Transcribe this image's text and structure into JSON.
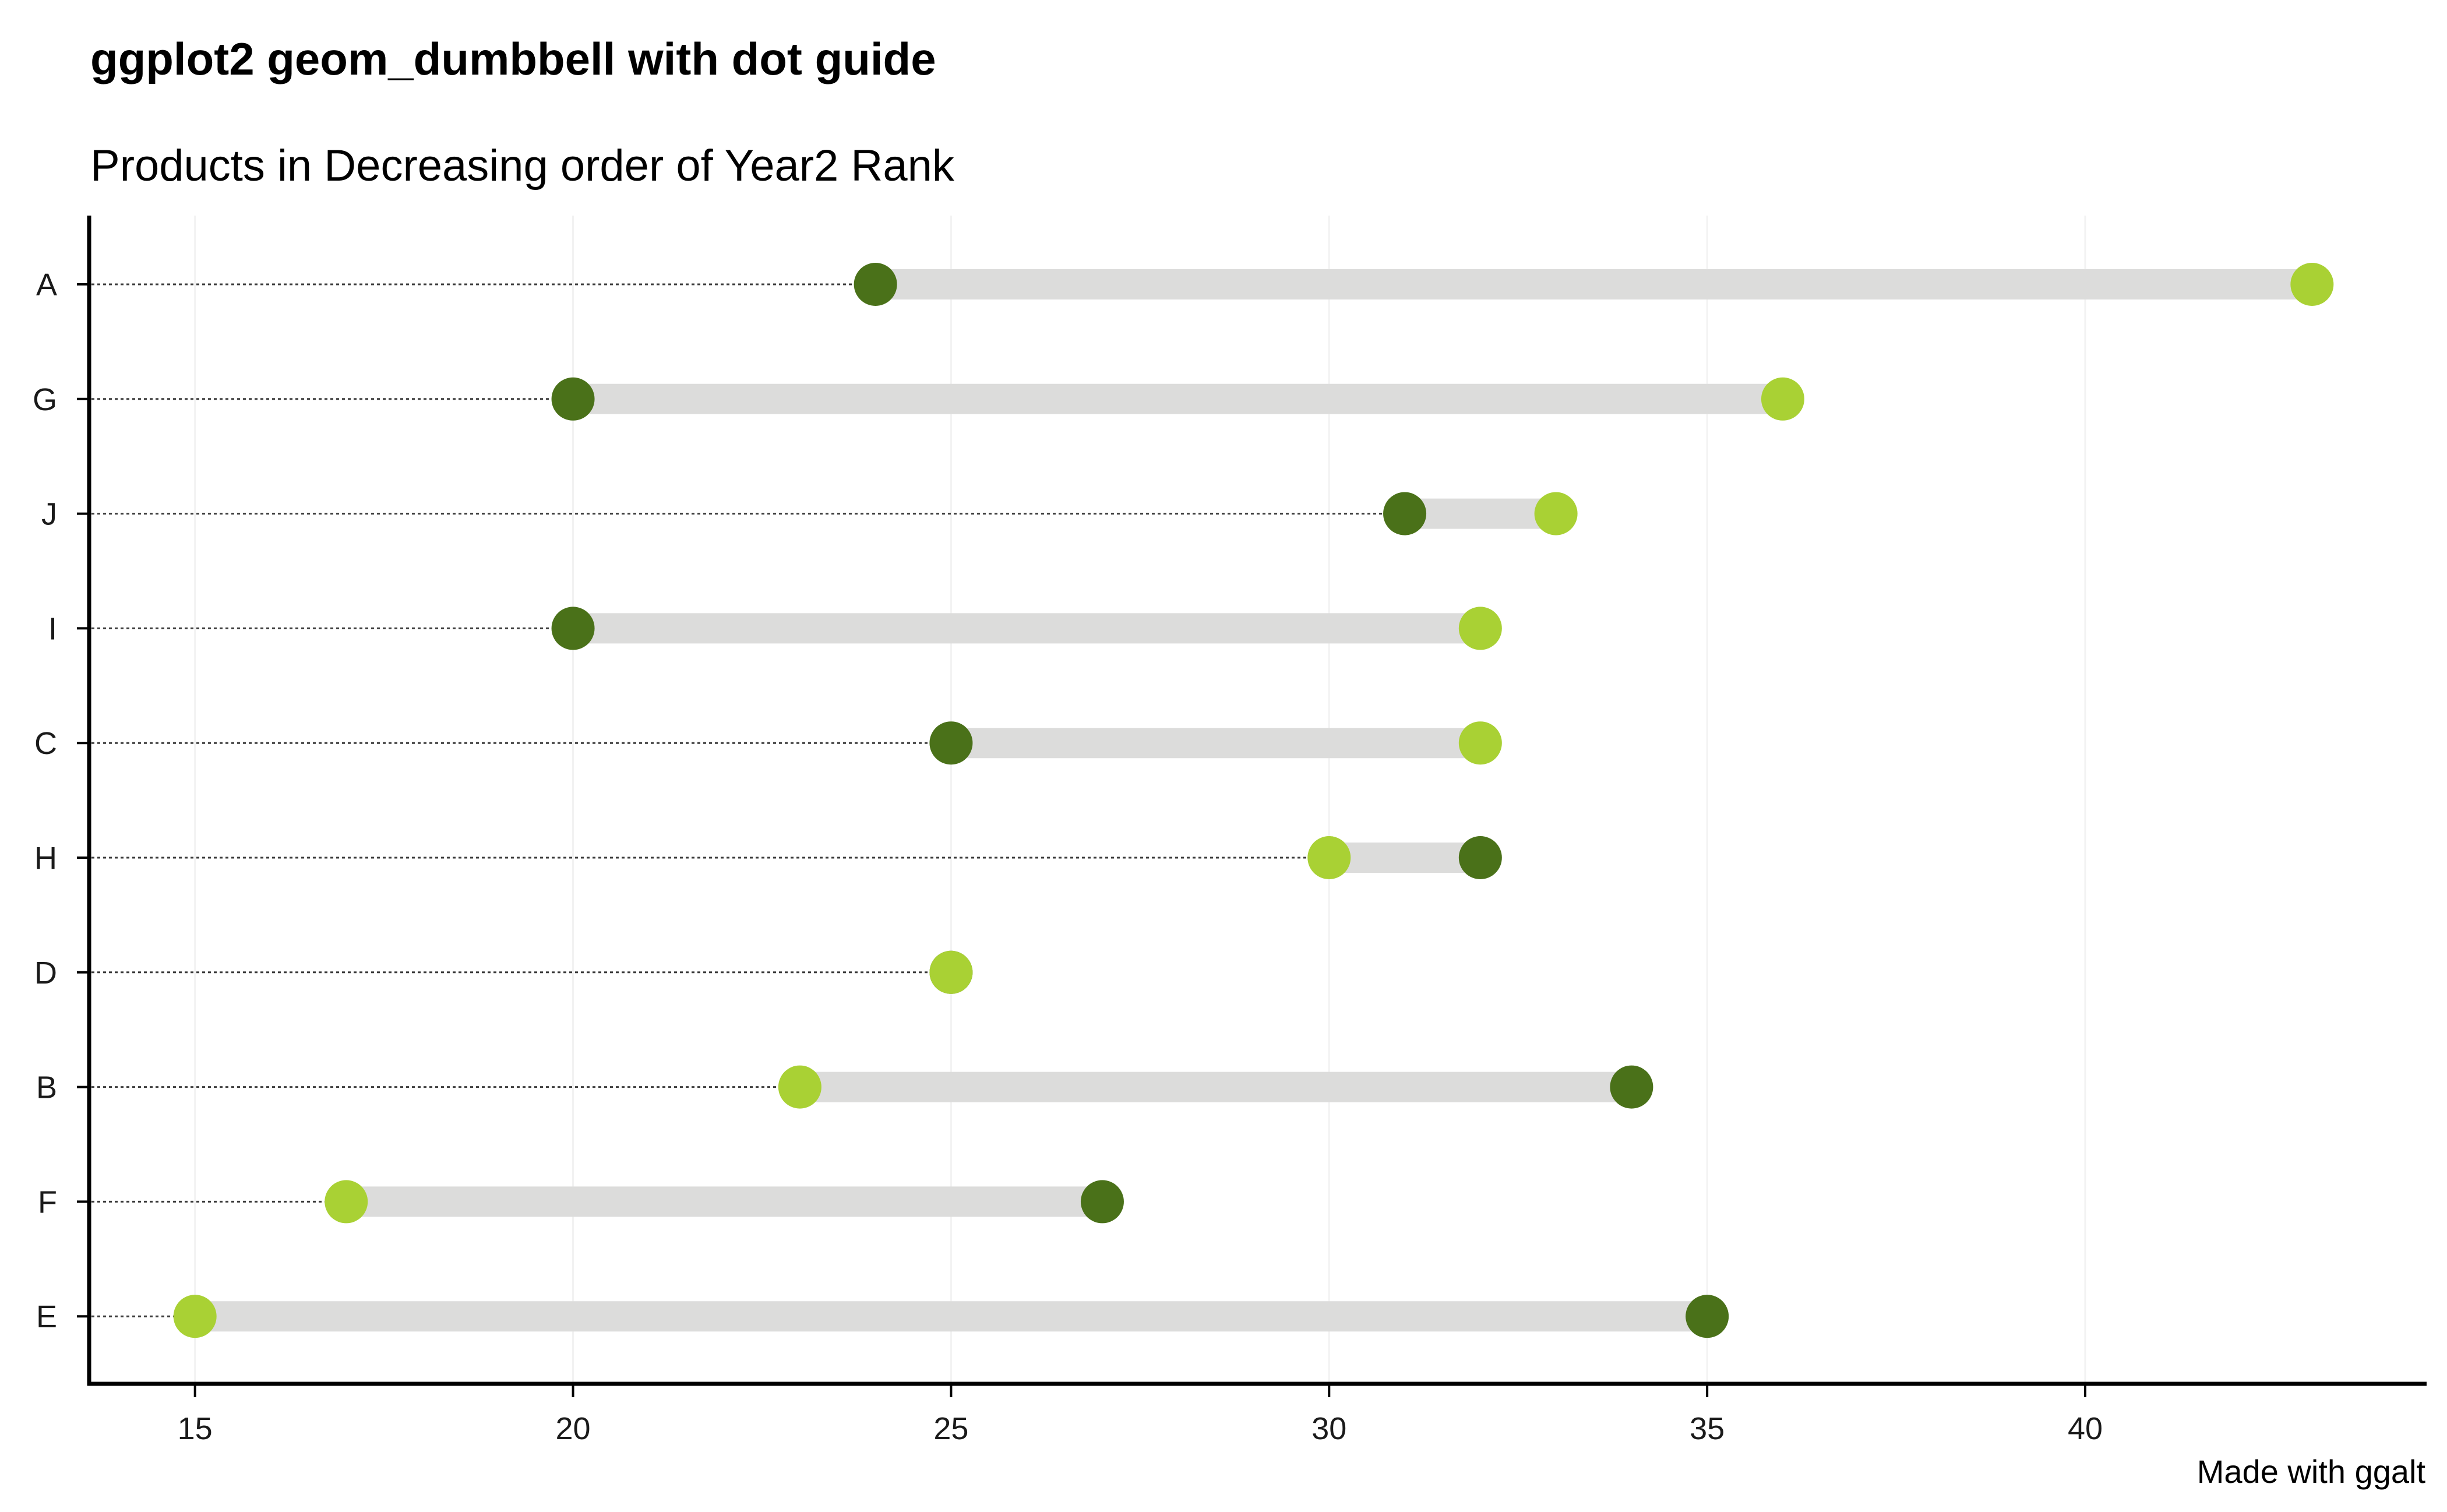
{
  "chart_data": {
    "type": "dumbbell",
    "title": "ggplot2 geom_dumbbell with dot guide",
    "subtitle": "Products in Decreasing order of Year2 Rank",
    "caption": "Made with ggalt",
    "xlabel": "",
    "ylabel": "",
    "xlim": [
      13.6,
      44.5
    ],
    "x_ticks": [
      15,
      20,
      25,
      30,
      35,
      40
    ],
    "grid": "vertical major lines only, very faint",
    "legend": "none",
    "colors": {
      "year1_point": "#a9d134",
      "year2_point": "#4a7119",
      "segment": "#dcdcdb",
      "dot_guide": "#3c3c3c",
      "axis": "#000000",
      "grid": "#f2f2f2"
    },
    "rows": [
      {
        "product": "A",
        "year1": 43,
        "year2": 24
      },
      {
        "product": "G",
        "year1": 36,
        "year2": 20
      },
      {
        "product": "J",
        "year1": 33,
        "year2": 31
      },
      {
        "product": "I",
        "year1": 32,
        "year2": 20
      },
      {
        "product": "C",
        "year1": 32,
        "year2": 25
      },
      {
        "product": "H",
        "year1": 30,
        "year2": 32
      },
      {
        "product": "D",
        "year1": 25,
        "year2": 25
      },
      {
        "product": "B",
        "year1": 23,
        "year2": 34
      },
      {
        "product": "F",
        "year1": 17,
        "year2": 27
      },
      {
        "product": "E",
        "year1": 15,
        "year2": 35
      }
    ]
  }
}
